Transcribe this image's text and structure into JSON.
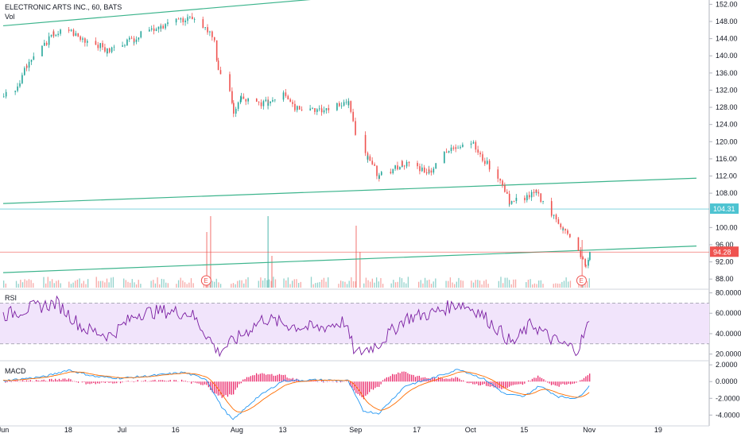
{
  "header": {
    "symbol_title": "ELECTRONIC ARTS INC., 60, BATS",
    "volume_label": "Vol"
  },
  "chart_data": [
    {
      "type": "candlestick",
      "title": "ELECTRONIC ARTS INC., 60, BATS",
      "x_ticks": [
        "Jun",
        "18",
        "Jul",
        "16",
        "Aug",
        "13",
        "Sep",
        "17",
        "Oct",
        "15",
        "Nov",
        "19"
      ],
      "y_ticks": [
        "152.00",
        "148.00",
        "144.00",
        "140.00",
        "136.00",
        "132.00",
        "128.00",
        "124.00",
        "120.00",
        "116.00",
        "112.00",
        "108.00",
        "100.00",
        "96.00",
        "92.00",
        "88.00"
      ],
      "ylim": [
        86,
        153
      ],
      "anchors": [
        [
          "2018-06-01",
          131
        ],
        [
          "2018-06-04",
          132
        ],
        [
          "2018-06-07",
          138
        ],
        [
          "2018-06-11",
          142
        ],
        [
          "2018-06-14",
          145
        ],
        [
          "2018-06-18",
          146
        ],
        [
          "2018-06-21",
          144
        ],
        [
          "2018-06-25",
          143
        ],
        [
          "2018-06-28",
          141
        ],
        [
          "2018-07-02",
          143
        ],
        [
          "2018-07-05",
          144
        ],
        [
          "2018-07-09",
          146
        ],
        [
          "2018-07-12",
          147
        ],
        [
          "2018-07-16",
          148
        ],
        [
          "2018-07-19",
          149
        ],
        [
          "2018-07-23",
          147
        ],
        [
          "2018-07-26",
          144
        ],
        [
          "2018-07-27",
          136
        ],
        [
          "2018-07-30",
          131
        ],
        [
          "2018-07-31",
          127
        ],
        [
          "2018-08-02",
          130
        ],
        [
          "2018-08-06",
          129
        ],
        [
          "2018-08-09",
          129
        ],
        [
          "2018-08-13",
          132
        ],
        [
          "2018-08-16",
          128
        ],
        [
          "2018-08-20",
          128
        ],
        [
          "2018-08-23",
          127
        ],
        [
          "2018-08-27",
          129
        ],
        [
          "2018-08-30",
          129
        ],
        [
          "2018-09-01",
          121
        ],
        [
          "2018-09-04",
          116
        ],
        [
          "2018-09-07",
          112
        ],
        [
          "2018-09-10",
          113
        ],
        [
          "2018-09-13",
          115
        ],
        [
          "2018-09-17",
          114
        ],
        [
          "2018-09-20",
          113
        ],
        [
          "2018-09-24",
          117
        ],
        [
          "2018-09-27",
          119
        ],
        [
          "2018-10-01",
          120
        ],
        [
          "2018-10-04",
          116
        ],
        [
          "2018-10-08",
          112
        ],
        [
          "2018-10-11",
          106
        ],
        [
          "2018-10-15",
          107
        ],
        [
          "2018-10-18",
          108
        ],
        [
          "2018-10-22",
          103
        ],
        [
          "2018-10-25",
          100
        ],
        [
          "2018-10-29",
          94
        ],
        [
          "2018-10-31",
          91
        ],
        [
          "2018-11-01",
          94.28
        ]
      ],
      "trendlines": [
        {
          "from": [
            "2018-06-01",
            147
          ],
          "to": [
            "2018-09-01",
            154
          ]
        },
        {
          "from": [
            "2018-06-01",
            105.6
          ],
          "to": [
            "2018-11-29",
            111.5
          ]
        },
        {
          "from": [
            "2018-06-01",
            89.5
          ],
          "to": [
            "2018-11-29",
            95.7
          ]
        }
      ],
      "price_lines": [
        {
          "value": 104.31,
          "label": "104.31",
          "color": "#4dc3d1"
        },
        {
          "value": 94.28,
          "label": "94.28",
          "color": "#ef5350"
        }
      ],
      "earnings_markers": [
        {
          "date": "2018-07-24",
          "label": "E"
        },
        {
          "date": "2018-10-30",
          "label": "E"
        }
      ]
    },
    {
      "type": "line",
      "name": "RSI",
      "ylim": [
        15,
        82
      ],
      "y_ticks": [
        "80.0000",
        "60.0000",
        "40.0000",
        "20.0000"
      ],
      "band": [
        30,
        70
      ],
      "anchors": [
        [
          "2018-06-01",
          58
        ],
        [
          "2018-06-08",
          65
        ],
        [
          "2018-06-15",
          70
        ],
        [
          "2018-06-22",
          45
        ],
        [
          "2018-06-29",
          38
        ],
        [
          "2018-07-06",
          60
        ],
        [
          "2018-07-13",
          62
        ],
        [
          "2018-07-20",
          60
        ],
        [
          "2018-07-24",
          40
        ],
        [
          "2018-07-27",
          22
        ],
        [
          "2018-08-01",
          35
        ],
        [
          "2018-08-08",
          55
        ],
        [
          "2018-08-15",
          48
        ],
        [
          "2018-08-22",
          45
        ],
        [
          "2018-08-29",
          52
        ],
        [
          "2018-09-01",
          20
        ],
        [
          "2018-09-07",
          30
        ],
        [
          "2018-09-14",
          55
        ],
        [
          "2018-09-21",
          60
        ],
        [
          "2018-09-28",
          70
        ],
        [
          "2018-10-03",
          62
        ],
        [
          "2018-10-08",
          45
        ],
        [
          "2018-10-12",
          30
        ],
        [
          "2018-10-17",
          50
        ],
        [
          "2018-10-22",
          35
        ],
        [
          "2018-10-26",
          28
        ],
        [
          "2018-10-29",
          25
        ],
        [
          "2018-10-31",
          42
        ],
        [
          "2018-11-01",
          52
        ]
      ]
    },
    {
      "type": "histogram-line",
      "name": "MACD",
      "ylim": [
        -5.2,
        2.3
      ],
      "y_ticks": [
        "2.0000",
        "0.0000",
        "-2.0000",
        "-4.0000"
      ],
      "anchors": [
        [
          "2018-06-01",
          0.1
        ],
        [
          "2018-06-12",
          0.6
        ],
        [
          "2018-06-18",
          1.4
        ],
        [
          "2018-06-25",
          0.6
        ],
        [
          "2018-07-02",
          0.4
        ],
        [
          "2018-07-12",
          0.8
        ],
        [
          "2018-07-18",
          1.1
        ],
        [
          "2018-07-24",
          0.3
        ],
        [
          "2018-07-28",
          -3.0
        ],
        [
          "2018-07-31",
          -4.6
        ],
        [
          "2018-08-06",
          -2.0
        ],
        [
          "2018-08-13",
          0.1
        ],
        [
          "2018-08-22",
          0.2
        ],
        [
          "2018-08-30",
          0.1
        ],
        [
          "2018-09-03",
          -3.5
        ],
        [
          "2018-09-07",
          -3.8
        ],
        [
          "2018-09-14",
          -0.5
        ],
        [
          "2018-09-21",
          0.4
        ],
        [
          "2018-09-28",
          1.5
        ],
        [
          "2018-10-05",
          0.2
        ],
        [
          "2018-10-10",
          -1.5
        ],
        [
          "2018-10-15",
          -1.8
        ],
        [
          "2018-10-19",
          -0.5
        ],
        [
          "2018-10-24",
          -1.8
        ],
        [
          "2018-10-29",
          -2.0
        ],
        [
          "2018-11-01",
          -0.5
        ]
      ]
    }
  ],
  "colors": {
    "up": "#26a69a",
    "down": "#ef5350",
    "trendline": "#3cb48c",
    "rsi_line": "#7b1fa2",
    "rsi_band": "#f1e4fb",
    "macd_line": "#2196f3",
    "signal_line": "#ff6d00",
    "macd_hist": "#e91e63"
  }
}
